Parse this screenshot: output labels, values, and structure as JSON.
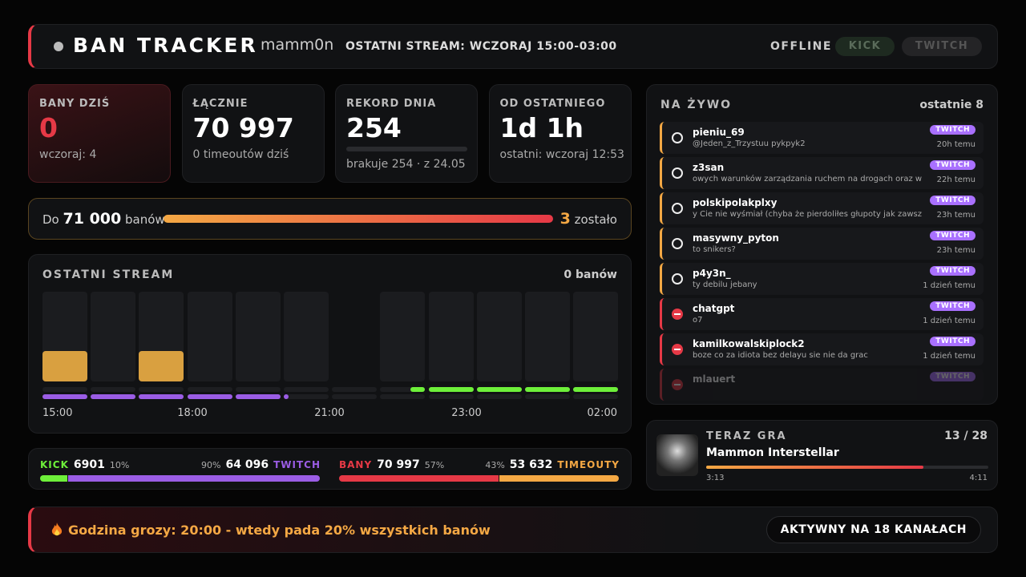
{
  "header": {
    "title": "BAN TRACKER",
    "channel": "mamm0n",
    "stream_info": "OSTATNI STREAM: WCZORAJ 15:00-03:00",
    "status": "OFFLINE",
    "platforms": [
      "KICK",
      "TWITCH"
    ]
  },
  "stats": [
    {
      "label": "BANY DZIŚ",
      "value": "0",
      "sub": "wczoraj: 4"
    },
    {
      "label": "ŁĄCZNIE",
      "value": "70 997",
      "sub": "0 timeoutów dziś"
    },
    {
      "label": "REKORD DNIA",
      "value": "254",
      "sub": "brakuje 254 · z 24.05"
    },
    {
      "label": "OD OSTATNIEGO",
      "value": "1d 1h",
      "sub": "ostatni: wczoraj 12:53"
    }
  ],
  "goal": {
    "prefix": "Do",
    "target": "71 000",
    "suffix": "banów",
    "remaining": "3",
    "remaining_label": "zostało"
  },
  "stream": {
    "title": "OSTATNI STREAM",
    "summary": "0 banów",
    "times": [
      "15:00",
      "18:00",
      "21:00",
      "23:00",
      "02:00"
    ]
  },
  "split": {
    "left": [
      {
        "name": "KICK",
        "value": "6901",
        "pct": "10%",
        "color": "#6ef03a"
      },
      {
        "name": "TWITCH",
        "value": "64 096",
        "pct": "90%",
        "color": "#9b5de5"
      }
    ],
    "right": [
      {
        "name": "BANY",
        "value": "70 997",
        "pct": "57%",
        "color": "#e63946"
      },
      {
        "name": "TIMEOUTY",
        "value": "53 632",
        "pct": "43%",
        "color": "#f4a844"
      }
    ]
  },
  "live": {
    "title": "NA ŻYWO",
    "count": "ostatnie 8",
    "items": [
      {
        "user": "pieniu_69",
        "message": "@Jeden_z_Trzystuu pykpyk2",
        "platform": "TWITCH",
        "time": "20h temu",
        "color": "#f4a844"
      },
      {
        "user": "z3san",
        "message": "owych warunków zarządzania ruchem na drogach oraz w",
        "platform": "TWITCH",
        "time": "22h temu",
        "color": "#f4a844"
      },
      {
        "user": "polskipolakplxy",
        "message": "y Cie nie wyśmiał (chyba że pierdoliłes głupoty jak zawsz",
        "platform": "TWITCH",
        "time": "23h temu",
        "color": "#f4a844"
      },
      {
        "user": "masywny_pyton",
        "message": "to snikers?",
        "platform": "TWITCH",
        "time": "23h temu",
        "color": "#f4a844"
      },
      {
        "user": "p4y3n_",
        "message": "ty debilu jebany",
        "platform": "TWITCH",
        "time": "1 dzień temu",
        "color": "#f4a844"
      },
      {
        "user": "chatgpt",
        "message": "o7",
        "platform": "TWITCH",
        "time": "1 dzień temu",
        "color": "#e63946"
      },
      {
        "user": "kamilkowalskiplock2",
        "message": "boze co za idiota bez delayu sie nie da grac",
        "platform": "TWITCH",
        "time": "1 dzień temu",
        "color": "#e63946"
      },
      {
        "user": "mlauert",
        "platform": "TWITCH",
        "color": "#e63946"
      }
    ]
  },
  "now_playing": {
    "label": "TERAZ GRA",
    "position": "13 / 28",
    "title": "Mammon Interstellar",
    "elapsed": "3:13",
    "duration": "4:11"
  },
  "footer": {
    "alert": "Godzina grozy: 20:00 - wtedy pada 20% wszystkich banów",
    "badge": "AKTYWNY NA 18 KANAŁACH"
  }
}
